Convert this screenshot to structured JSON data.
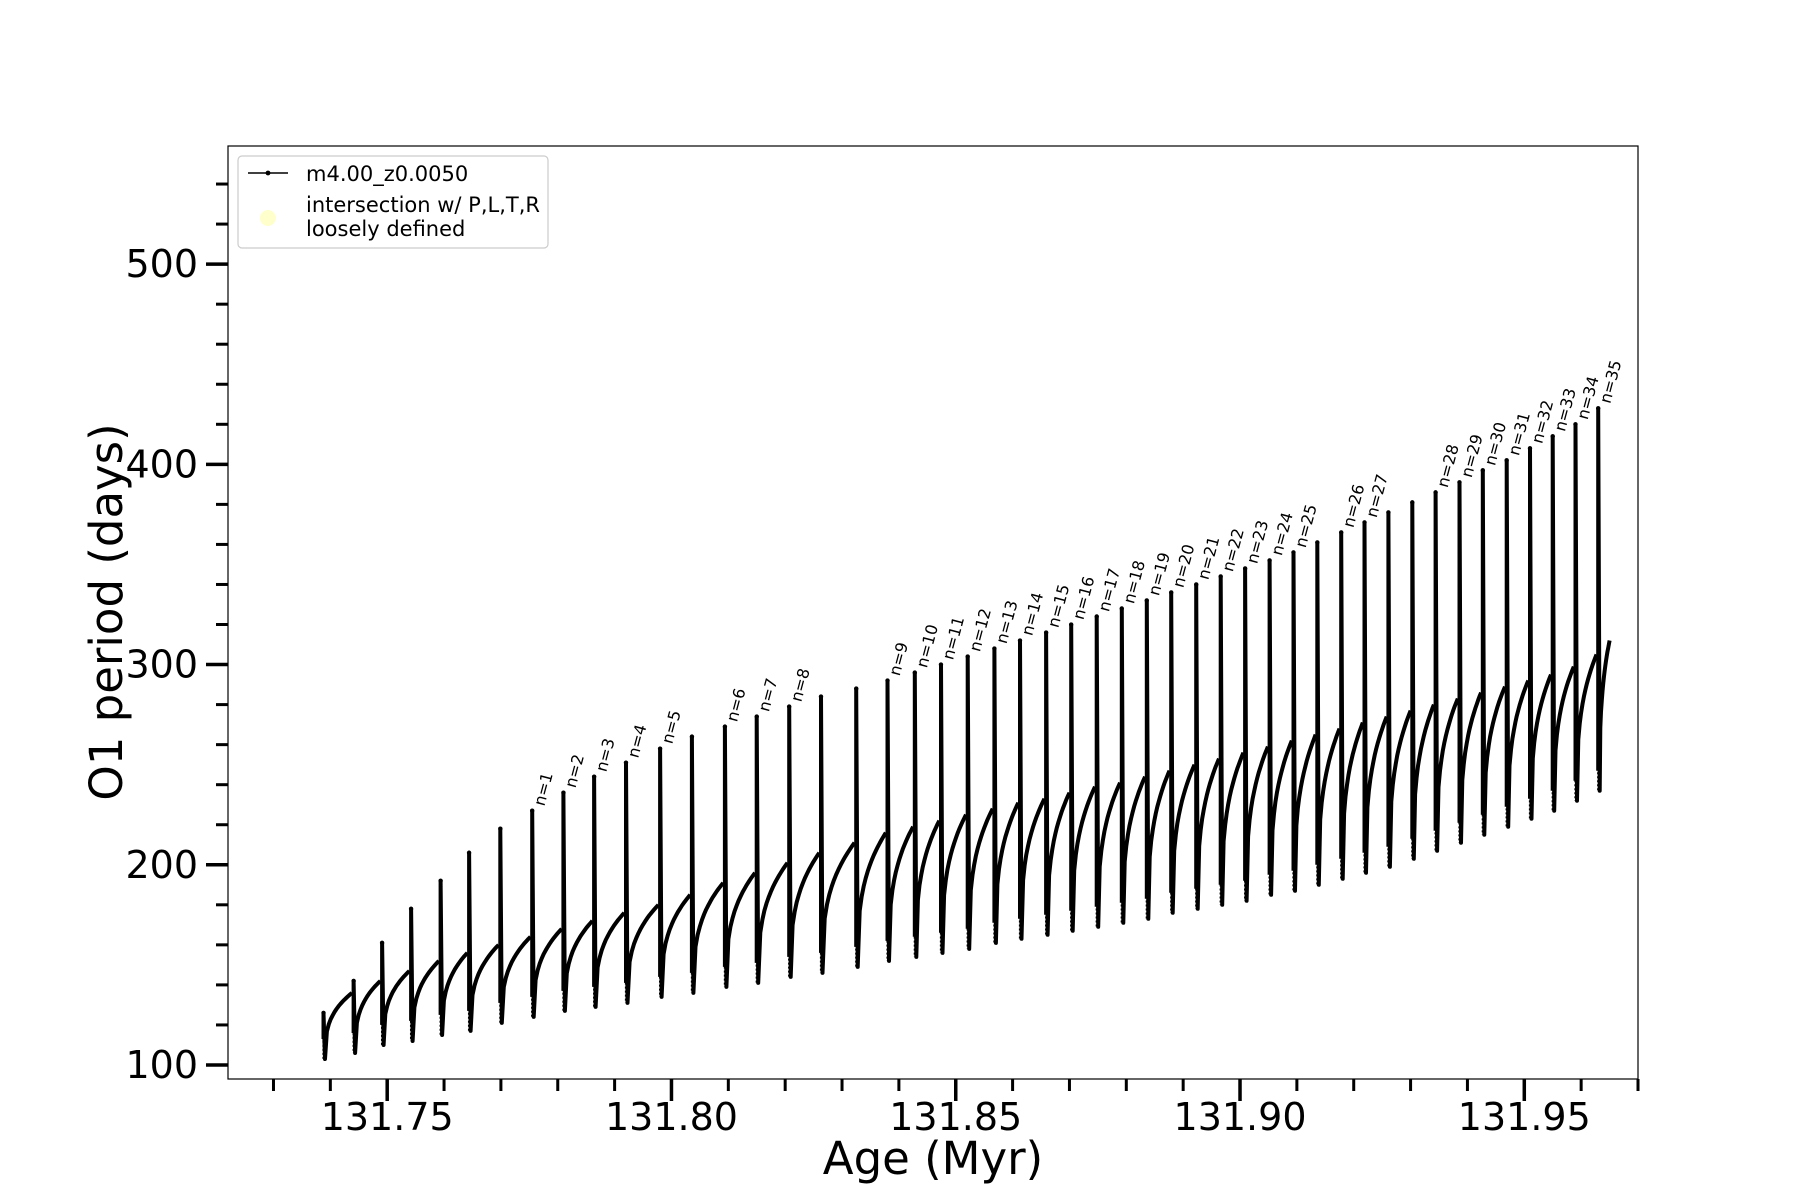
{
  "chart_data": {
    "type": "line",
    "xlabel": "Age (Myr)",
    "ylabel": "O1 period (days)",
    "xlim": [
      131.722,
      131.97
    ],
    "ylim": [
      93,
      559
    ],
    "xticks": [
      131.75,
      131.8,
      131.85,
      131.9,
      131.95
    ],
    "xtick_labels": [
      "131.75",
      "131.80",
      "131.85",
      "131.90",
      "131.95"
    ],
    "yticks": [
      100,
      200,
      300,
      400,
      500
    ],
    "ytick_labels": [
      "100",
      "200",
      "300",
      "400",
      "500"
    ],
    "legend": {
      "placement": "upper-left",
      "entries": [
        {
          "label": "m4.00_z0.0050",
          "marker": "line-with-dots",
          "color": "#000000"
        },
        {
          "label": "intersection w/ P,L,T,R\nloosely defined",
          "marker": "circle",
          "color": "#ffffcc"
        }
      ]
    },
    "series": [
      {
        "name": "m4.00_z0.0050",
        "color": "#000000",
        "loops": [
          {
            "x": 131.7388,
            "peak": 126,
            "low": 103,
            "end": 136
          },
          {
            "x": 131.7441,
            "peak": 142,
            "low": 106,
            "end": 142
          },
          {
            "x": 131.7491,
            "peak": 161,
            "low": 110,
            "end": 147
          },
          {
            "x": 131.7542,
            "peak": 178,
            "low": 112,
            "end": 152
          },
          {
            "x": 131.7594,
            "peak": 192,
            "low": 115,
            "end": 156
          },
          {
            "x": 131.7644,
            "peak": 206,
            "low": 117,
            "end": 160
          },
          {
            "x": 131.7699,
            "peak": 218,
            "low": 121,
            "end": 164
          },
          {
            "x": 131.7755,
            "peak": 227,
            "low": 124,
            "end": 168,
            "label": "n=1"
          },
          {
            "x": 131.781,
            "peak": 236,
            "low": 127,
            "end": 172,
            "label": "n=2"
          },
          {
            "x": 131.7864,
            "peak": 244,
            "low": 129,
            "end": 176,
            "label": "n=3"
          },
          {
            "x": 131.792,
            "peak": 251,
            "low": 131,
            "end": 180,
            "label": "n=4"
          },
          {
            "x": 131.798,
            "peak": 258,
            "low": 134,
            "end": 185,
            "label": "n=5"
          },
          {
            "x": 131.8036,
            "peak": 264,
            "low": 136,
            "end": 191
          },
          {
            "x": 131.8094,
            "peak": 269,
            "low": 139,
            "end": 196,
            "label": "n=6"
          },
          {
            "x": 131.815,
            "peak": 274,
            "low": 141,
            "end": 201,
            "label": "n=7"
          },
          {
            "x": 131.8207,
            "peak": 279,
            "low": 144,
            "end": 206,
            "label": "n=8"
          },
          {
            "x": 131.8263,
            "peak": 284,
            "low": 146,
            "end": 211
          },
          {
            "x": 131.8325,
            "peak": 288,
            "low": 149,
            "end": 216
          },
          {
            "x": 131.838,
            "peak": 292,
            "low": 152,
            "end": 219,
            "label": "n=9"
          },
          {
            "x": 131.8428,
            "peak": 296,
            "low": 154,
            "end": 222,
            "label": "n=10"
          },
          {
            "x": 131.8474,
            "peak": 300,
            "low": 156,
            "end": 225,
            "label": "n=11"
          },
          {
            "x": 131.8521,
            "peak": 304,
            "low": 158,
            "end": 228,
            "label": "n=12"
          },
          {
            "x": 131.8568,
            "peak": 308,
            "low": 161,
            "end": 231,
            "label": "n=13"
          },
          {
            "x": 131.8613,
            "peak": 312,
            "low": 163,
            "end": 233,
            "label": "n=14"
          },
          {
            "x": 131.8659,
            "peak": 316,
            "low": 165,
            "end": 236,
            "label": "n=15"
          },
          {
            "x": 131.8703,
            "peak": 320,
            "low": 167,
            "end": 239,
            "label": "n=16"
          },
          {
            "x": 131.8748,
            "peak": 324,
            "low": 169,
            "end": 241,
            "label": "n=17"
          },
          {
            "x": 131.8792,
            "peak": 328,
            "low": 171,
            "end": 244,
            "label": "n=18"
          },
          {
            "x": 131.8836,
            "peak": 332,
            "low": 173,
            "end": 247,
            "label": "n=19"
          },
          {
            "x": 131.8879,
            "peak": 336,
            "low": 176,
            "end": 250,
            "label": "n=20"
          },
          {
            "x": 131.8923,
            "peak": 340,
            "low": 178,
            "end": 253,
            "label": "n=21"
          },
          {
            "x": 131.8966,
            "peak": 344,
            "low": 180,
            "end": 256,
            "label": "n=22"
          },
          {
            "x": 131.9009,
            "peak": 348,
            "low": 182,
            "end": 259,
            "label": "n=23"
          },
          {
            "x": 131.9052,
            "peak": 352,
            "low": 185,
            "end": 262,
            "label": "n=24"
          },
          {
            "x": 131.9094,
            "peak": 356,
            "low": 187,
            "end": 265,
            "label": "n=25"
          },
          {
            "x": 131.9136,
            "peak": 361,
            "low": 190,
            "end": 268
          },
          {
            "x": 131.9178,
            "peak": 366,
            "low": 193,
            "end": 271,
            "label": "n=26"
          },
          {
            "x": 131.9219,
            "peak": 371,
            "low": 196,
            "end": 274,
            "label": "n=27"
          },
          {
            "x": 131.9261,
            "peak": 376,
            "low": 199,
            "end": 277
          },
          {
            "x": 131.9303,
            "peak": 381,
            "low": 203,
            "end": 280
          },
          {
            "x": 131.9344,
            "peak": 386,
            "low": 207,
            "end": 283,
            "label": "n=28"
          },
          {
            "x": 131.9386,
            "peak": 391,
            "low": 211,
            "end": 286,
            "label": "n=29"
          },
          {
            "x": 131.9427,
            "peak": 397,
            "low": 215,
            "end": 289,
            "label": "n=30"
          },
          {
            "x": 131.9469,
            "peak": 402,
            "low": 219,
            "end": 292,
            "label": "n=31"
          },
          {
            "x": 131.951,
            "peak": 408,
            "low": 223,
            "end": 295,
            "label": "n=32"
          },
          {
            "x": 131.955,
            "peak": 414,
            "low": 227,
            "end": 299,
            "label": "n=33"
          },
          {
            "x": 131.959,
            "peak": 420,
            "low": 232,
            "end": 305,
            "label": "n=34"
          },
          {
            "x": 131.963,
            "peak": 428,
            "low": 237,
            "end": 312,
            "label": "n=35"
          }
        ]
      }
    ]
  }
}
